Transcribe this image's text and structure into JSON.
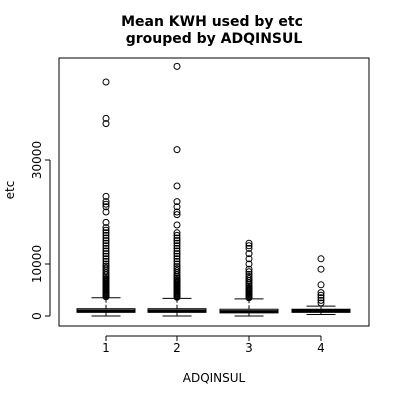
{
  "chart_data": {
    "type": "boxplot",
    "title_lines": [
      "Mean KWH used by etc",
      "grouped by ADQINSUL"
    ],
    "xlabel": "ADQINSUL",
    "ylabel": "etc",
    "categories": [
      "1",
      "2",
      "3",
      "4"
    ],
    "yticks": [
      0,
      10000,
      30000
    ],
    "ylim": [
      -1800,
      50000
    ],
    "grid": false,
    "series": [
      {
        "category": "1",
        "whisker_low": 0,
        "q1": 700,
        "median": 1000,
        "q3": 1400,
        "whisker_high": 3500,
        "outliers": [
          3700,
          3900,
          4100,
          4300,
          4500,
          4700,
          4900,
          5100,
          5300,
          5500,
          5700,
          5900,
          6100,
          6300,
          6500,
          6700,
          6900,
          7100,
          7400,
          7700,
          8000,
          8400,
          8800,
          9200,
          9600,
          10000,
          10500,
          11000,
          11500,
          12000,
          12500,
          13000,
          13500,
          14000,
          14500,
          15000,
          15500,
          16000,
          16500,
          17000,
          18000,
          20000,
          21000,
          21500,
          22000,
          23000,
          37000,
          38000,
          45000
        ]
      },
      {
        "category": "2",
        "whisker_low": 0,
        "q1": 700,
        "median": 1000,
        "q3": 1400,
        "whisker_high": 3400,
        "outliers": [
          3600,
          3800,
          4000,
          4200,
          4400,
          4600,
          4800,
          5000,
          5200,
          5400,
          5600,
          5800,
          6000,
          6200,
          6400,
          6600,
          6800,
          7000,
          7300,
          7600,
          7900,
          8300,
          8700,
          9100,
          9500,
          10000,
          10500,
          11000,
          11500,
          12000,
          12500,
          13000,
          13500,
          14000,
          14500,
          15000,
          15500,
          16000,
          17500,
          19500,
          20000,
          21000,
          22000,
          25000,
          32000,
          48000
        ]
      },
      {
        "category": "3",
        "whisker_low": 0,
        "q1": 600,
        "median": 900,
        "q3": 1300,
        "whisker_high": 3300,
        "outliers": [
          3500,
          3700,
          3900,
          4100,
          4300,
          4500,
          4700,
          4900,
          5100,
          5300,
          5500,
          5800,
          6100,
          6400,
          6800,
          7200,
          7600,
          8000,
          8500,
          9000,
          10000,
          11000,
          12000,
          13000,
          13500,
          14000
        ]
      },
      {
        "category": "4",
        "whisker_low": 300,
        "q1": 700,
        "median": 1000,
        "q3": 1300,
        "whisker_high": 1900,
        "outliers": [
          2500,
          3000,
          3500,
          4000,
          4500,
          6000,
          9000,
          11000
        ]
      }
    ]
  }
}
